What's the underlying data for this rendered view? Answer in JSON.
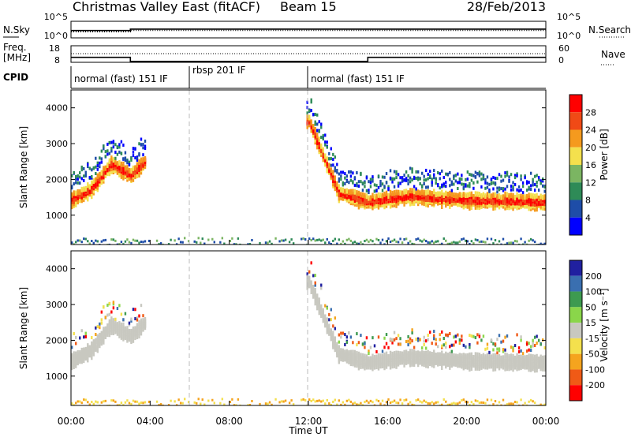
{
  "header": {
    "title": "Christmas Valley East (fitACF)",
    "beam": "Beam 15",
    "date": "28/Feb/2013"
  },
  "nsky_panel": {
    "left_label": "N.Sky",
    "left_ticks": [
      "10^5",
      "10^0"
    ],
    "right_ticks": [
      "10^5",
      "10^0"
    ],
    "right_label": "N.Search"
  },
  "freq_panel": {
    "left_label_1": "Freq.",
    "left_label_2": "[MHz]",
    "left_ticks": [
      "18",
      "8"
    ],
    "right_ticks": [
      "60",
      "0"
    ],
    "right_label": "Nave"
  },
  "cpid_panel": {
    "label": "CPID",
    "segments": [
      "normal (fast) 151 IF",
      "rbsp 201 IF",
      "normal (fast) 151 IF"
    ]
  },
  "power_panel": {
    "ylabel": "Slant Range [km]",
    "yticks": [
      "1000",
      "2000",
      "3000",
      "4000"
    ],
    "colorbar_label": "Power [dB]",
    "colorbar_ticks": [
      "4",
      "8",
      "12",
      "16",
      "20",
      "24",
      "28"
    ],
    "colors": [
      "#0000ff",
      "#1e4da8",
      "#2e8b57",
      "#7bb562",
      "#f4e04d",
      "#f59a1e",
      "#f04a16",
      "#ff0000"
    ]
  },
  "velocity_panel": {
    "ylabel": "Slant Range [km]",
    "yticks": [
      "1000",
      "2000",
      "3000",
      "4000"
    ],
    "colorbar_label": "Velocity [m s⁻¹]",
    "colorbar_ticks": [
      "200",
      "100",
      "50",
      "15",
      "-15",
      "-50",
      "-100",
      "-200"
    ],
    "colors": [
      "#2020a0",
      "#3a6fb0",
      "#3d9a50",
      "#8ad64a",
      "#c8c8c0",
      "#f4e04d",
      "#f5a41e",
      "#f05a16",
      "#ff0000"
    ]
  },
  "xaxis": {
    "label": "Time UT",
    "ticks": [
      "00:00",
      "04:00",
      "08:00",
      "12:00",
      "16:00",
      "20:00",
      "00:00"
    ]
  },
  "chart_data": {
    "type": "heatmap",
    "title": "Christmas Valley East (fitACF)",
    "x_range_hours": [
      0,
      24
    ],
    "y_range_km": [
      180,
      4500
    ],
    "nsky_level": [
      [
        0,
        2.3
      ],
      [
        3,
        2.3
      ],
      [
        3,
        2.8
      ],
      [
        24,
        2.8
      ]
    ],
    "freq_mhz": [
      [
        0,
        11.5
      ],
      [
        3,
        11.5
      ],
      [
        3,
        9.0
      ],
      [
        15,
        9.0
      ],
      [
        15,
        11.5
      ],
      [
        24,
        11.5
      ]
    ],
    "nave": [
      [
        0,
        14
      ],
      [
        3,
        14
      ],
      [
        3,
        5
      ],
      [
        15,
        5
      ],
      [
        15,
        14
      ],
      [
        24,
        14
      ]
    ],
    "cpid_boundaries_hours": [
      6,
      12
    ],
    "echo_band_power_km": [
      [
        0,
        1500
      ],
      [
        1,
        1800
      ],
      [
        2,
        2500
      ],
      [
        3,
        2200
      ],
      [
        3.8,
        2600
      ],
      [
        12,
        3700
      ],
      [
        13.5,
        1700
      ],
      [
        15,
        1450
      ],
      [
        17,
        1600
      ],
      [
        20,
        1500
      ],
      [
        24,
        1450
      ]
    ],
    "echo_band_velocity_class": "-15..15 (ground scatter, grey)"
  }
}
